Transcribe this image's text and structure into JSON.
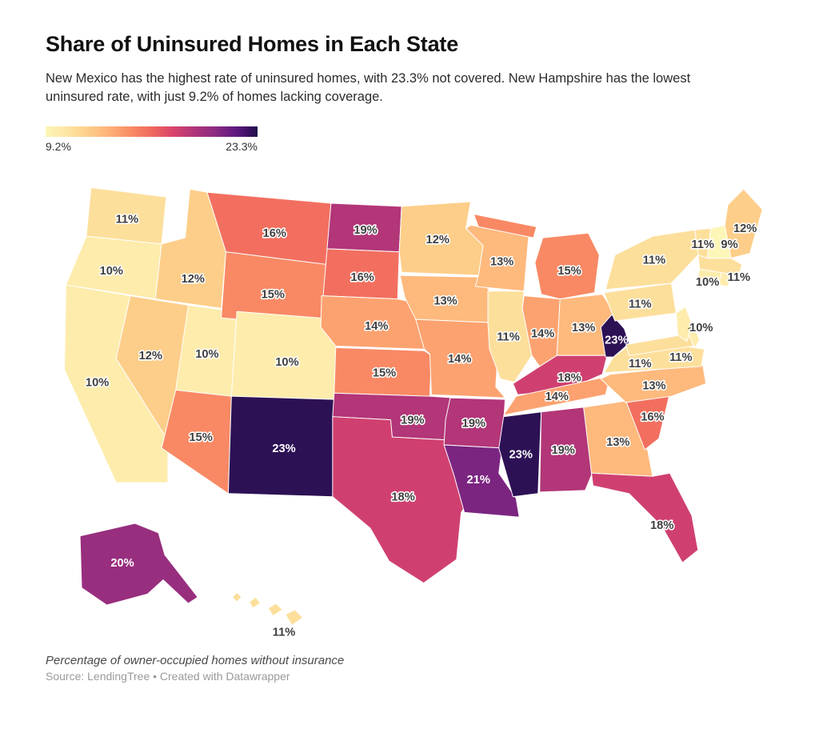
{
  "header": {
    "title": "Share of Uninsured Homes in Each State",
    "subtitle": "New Mexico has the highest rate of uninsured homes, with 23.3% not covered. New Hampshire has the lowest uninsured rate, with just 9.2% of homes lacking coverage."
  },
  "legend": {
    "min_label": "9.2%",
    "max_label": "23.3%"
  },
  "footer": {
    "note": "Percentage of owner-occupied homes without insurance",
    "source": "Source: LendingTree • Created with Datawrapper"
  },
  "chart_data": {
    "type": "choropleth",
    "title": "Share of Uninsured Homes in Each State",
    "unit": "%",
    "domain": [
      9.2,
      23.3
    ],
    "legend_min": "9.2%",
    "legend_max": "23.3%",
    "color_stops": [
      [
        0.0,
        "#fcf6b8"
      ],
      [
        0.1,
        "#fde5a3"
      ],
      [
        0.2,
        "#fdce89"
      ],
      [
        0.3,
        "#feb078"
      ],
      [
        0.4,
        "#f98d65"
      ],
      [
        0.5,
        "#f0695e"
      ],
      [
        0.6,
        "#d9446d"
      ],
      [
        0.7,
        "#b03579"
      ],
      [
        0.8,
        "#8c2b81"
      ],
      [
        0.9,
        "#5e1a80"
      ],
      [
        0.96,
        "#391062"
      ],
      [
        1.0,
        "#1f1347"
      ]
    ],
    "states": [
      {
        "code": "WA",
        "name": "Washington",
        "value": 11,
        "label": "11%"
      },
      {
        "code": "OR",
        "name": "Oregon",
        "value": 10,
        "label": "10%"
      },
      {
        "code": "CA",
        "name": "California",
        "value": 10,
        "label": "10%"
      },
      {
        "code": "ID",
        "name": "Idaho",
        "value": 12,
        "label": "12%"
      },
      {
        "code": "NV",
        "name": "Nevada",
        "value": 12,
        "label": "12%"
      },
      {
        "code": "UT",
        "name": "Utah",
        "value": 10,
        "label": "10%"
      },
      {
        "code": "MT",
        "name": "Montana",
        "value": 16,
        "label": "16%"
      },
      {
        "code": "WY",
        "name": "Wyoming",
        "value": 15,
        "label": "15%"
      },
      {
        "code": "CO",
        "name": "Colorado",
        "value": 10,
        "label": "10%"
      },
      {
        "code": "AZ",
        "name": "Arizona",
        "value": 15,
        "label": "15%"
      },
      {
        "code": "NM",
        "name": "New Mexico",
        "value": 23,
        "label": "23%"
      },
      {
        "code": "ND",
        "name": "North Dakota",
        "value": 19,
        "label": "19%"
      },
      {
        "code": "SD",
        "name": "South Dakota",
        "value": 16,
        "label": "16%"
      },
      {
        "code": "NE",
        "name": "Nebraska",
        "value": 14,
        "label": "14%"
      },
      {
        "code": "KS",
        "name": "Kansas",
        "value": 15,
        "label": "15%"
      },
      {
        "code": "OK",
        "name": "Oklahoma",
        "value": 19,
        "label": "19%"
      },
      {
        "code": "TX",
        "name": "Texas",
        "value": 18,
        "label": "18%"
      },
      {
        "code": "MN",
        "name": "Minnesota",
        "value": 12,
        "label": "12%"
      },
      {
        "code": "IA",
        "name": "Iowa",
        "value": 13,
        "label": "13%"
      },
      {
        "code": "MO",
        "name": "Missouri",
        "value": 14,
        "label": "14%"
      },
      {
        "code": "AR",
        "name": "Arkansas",
        "value": 19,
        "label": "19%"
      },
      {
        "code": "LA",
        "name": "Louisiana",
        "value": 21,
        "label": "21%"
      },
      {
        "code": "WI",
        "name": "Wisconsin",
        "value": 13,
        "label": "13%"
      },
      {
        "code": "IL",
        "name": "Illinois",
        "value": 11,
        "label": "11%"
      },
      {
        "code": "IN",
        "name": "Indiana",
        "value": 14,
        "label": "14%"
      },
      {
        "code": "MI",
        "name": "Michigan",
        "value": 15,
        "label": "15%"
      },
      {
        "code": "OH",
        "name": "Ohio",
        "value": 13,
        "label": "13%"
      },
      {
        "code": "KY",
        "name": "Kentucky",
        "value": 18,
        "label": "18%"
      },
      {
        "code": "TN",
        "name": "Tennessee",
        "value": 14,
        "label": "14%"
      },
      {
        "code": "MS",
        "name": "Mississippi",
        "value": 23,
        "label": "23%"
      },
      {
        "code": "AL",
        "name": "Alabama",
        "value": 19,
        "label": "19%"
      },
      {
        "code": "GA",
        "name": "Georgia",
        "value": 13,
        "label": "13%"
      },
      {
        "code": "FL",
        "name": "Florida",
        "value": 18,
        "label": "18%"
      },
      {
        "code": "SC",
        "name": "South Carolina",
        "value": 16,
        "label": "16%"
      },
      {
        "code": "NC",
        "name": "North Carolina",
        "value": 13,
        "label": "13%"
      },
      {
        "code": "VA",
        "name": "Virginia",
        "value": 11,
        "label": "11%"
      },
      {
        "code": "WV",
        "name": "West Virginia",
        "value": 23,
        "label": "23%"
      },
      {
        "code": "PA",
        "name": "Pennsylvania",
        "value": 11,
        "label": "11%"
      },
      {
        "code": "NY",
        "name": "New York",
        "value": 11,
        "label": "11%"
      },
      {
        "code": "MD",
        "name": "Maryland",
        "value": 11,
        "label": "11%"
      },
      {
        "code": "DE",
        "name": "Delaware",
        "value": 10,
        "label": ""
      },
      {
        "code": "NJ",
        "name": "New Jersey",
        "value": 10,
        "label": "10%"
      },
      {
        "code": "CT",
        "name": "Connecticut",
        "value": 10,
        "label": "10%"
      },
      {
        "code": "RI",
        "name": "Rhode Island",
        "value": 10,
        "label": ""
      },
      {
        "code": "MA",
        "name": "Massachusetts",
        "value": 11,
        "label": "11%"
      },
      {
        "code": "VT",
        "name": "Vermont",
        "value": 11,
        "label": "11%"
      },
      {
        "code": "NH",
        "name": "New Hampshire",
        "value": 9.2,
        "label": "9%"
      },
      {
        "code": "ME",
        "name": "Maine",
        "value": 12,
        "label": "12%"
      },
      {
        "code": "AK",
        "name": "Alaska",
        "value": 20,
        "label": "20%"
      },
      {
        "code": "HI",
        "name": "Hawaii",
        "value": 11,
        "label": "11%"
      }
    ]
  }
}
